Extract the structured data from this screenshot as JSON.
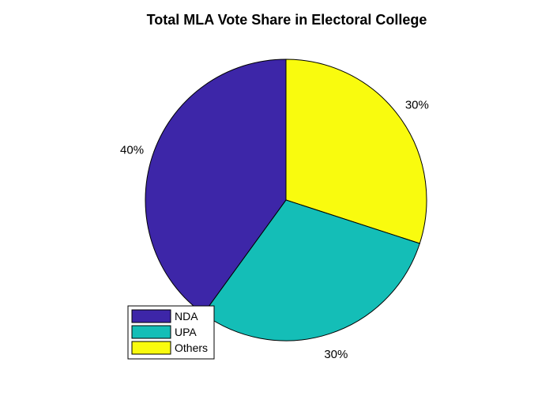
{
  "chart_data": {
    "type": "pie",
    "title": "Total MLA Vote Share in Electoral College",
    "slices": [
      {
        "name": "Others",
        "value": 30,
        "label": "30%",
        "color": "#F9FB0E"
      },
      {
        "name": "UPA",
        "value": 30,
        "label": "30%",
        "color": "#14BEB7"
      },
      {
        "name": "NDA",
        "value": 40,
        "label": "40%",
        "color": "#3D26A8"
      }
    ],
    "start": "top",
    "direction": "clockwise",
    "legend": {
      "placement": "bottom-left",
      "entries": [
        {
          "name": "NDA",
          "color": "#3D26A8"
        },
        {
          "name": "UPA",
          "color": "#14BEB7"
        },
        {
          "name": "Others",
          "color": "#F9FB0E"
        }
      ]
    }
  }
}
